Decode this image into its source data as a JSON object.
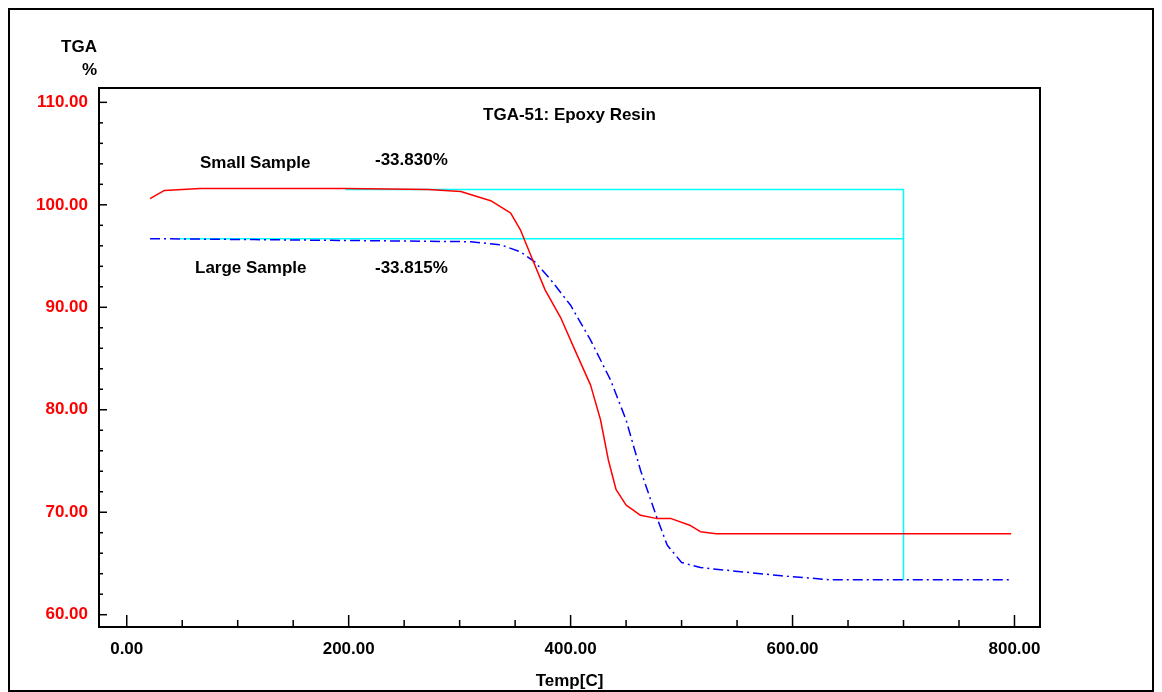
{
  "chart_data": {
    "type": "line",
    "title": "TGA-51: Epoxy Resin",
    "xlabel": "Temp[C]",
    "ylabel": "TGA\n%",
    "xlim": [
      -25,
      823
    ],
    "ylim": [
      58.8,
      111.4
    ],
    "xticks": [
      {
        "value": 0,
        "label": "0.00"
      },
      {
        "value": 50,
        "label": null
      },
      {
        "value": 100,
        "label": null
      },
      {
        "value": 150,
        "label": null
      },
      {
        "value": 200,
        "label": "200.00"
      },
      {
        "value": 250,
        "label": null
      },
      {
        "value": 300,
        "label": null
      },
      {
        "value": 350,
        "label": null
      },
      {
        "value": 400,
        "label": "400.00"
      },
      {
        "value": 450,
        "label": null
      },
      {
        "value": 500,
        "label": null
      },
      {
        "value": 550,
        "label": null
      },
      {
        "value": 600,
        "label": "600.00"
      },
      {
        "value": 650,
        "label": null
      },
      {
        "value": 700,
        "label": null
      },
      {
        "value": 750,
        "label": null
      },
      {
        "value": 800,
        "label": "800.00"
      }
    ],
    "yticks": [
      {
        "value": 60,
        "label": "60.00"
      },
      {
        "value": 62,
        "label": null
      },
      {
        "value": 64,
        "label": null
      },
      {
        "value": 66,
        "label": null
      },
      {
        "value": 68,
        "label": null
      },
      {
        "value": 70,
        "label": "70.00"
      },
      {
        "value": 72,
        "label": null
      },
      {
        "value": 74,
        "label": null
      },
      {
        "value": 76,
        "label": null
      },
      {
        "value": 78,
        "label": null
      },
      {
        "value": 80,
        "label": "80.00"
      },
      {
        "value": 82,
        "label": null
      },
      {
        "value": 84,
        "label": null
      },
      {
        "value": 86,
        "label": null
      },
      {
        "value": 88,
        "label": null
      },
      {
        "value": 90,
        "label": "90.00"
      },
      {
        "value": 92,
        "label": null
      },
      {
        "value": 94,
        "label": null
      },
      {
        "value": 96,
        "label": null
      },
      {
        "value": 98,
        "label": null
      },
      {
        "value": 100,
        "label": "100.00"
      },
      {
        "value": 102,
        "label": null
      },
      {
        "value": 104,
        "label": null
      },
      {
        "value": 106,
        "label": null
      },
      {
        "value": 108,
        "label": null
      },
      {
        "value": 110,
        "label": "110.00"
      }
    ],
    "grid": false,
    "marker": "none",
    "series": [
      {
        "color": "#ff0000",
        "line_style": "solid",
        "x": [
          21,
          34,
          66,
          197,
          272,
          301,
          328,
          346,
          355,
          364,
          377,
          391,
          404,
          418,
          427,
          434,
          441,
          450,
          463,
          477,
          490,
          508,
          517,
          531,
          608,
          797
        ],
        "values": [
          100.6,
          101.4,
          101.6,
          101.6,
          101.5,
          101.3,
          100.4,
          99.2,
          97.5,
          95.1,
          91.7,
          89,
          85.8,
          82.4,
          79,
          75.1,
          72.2,
          70.7,
          69.7,
          69.4,
          69.4,
          68.7,
          68.1,
          67.9,
          67.9,
          67.9
        ]
      },
      {
        "color": "#0000ff",
        "line_style": "dashed",
        "x": [
          21,
          219,
          310,
          337,
          355,
          368,
          382,
          400,
          418,
          436,
          450,
          463,
          477,
          487,
          500,
          517,
          544,
          590,
          635,
          797
        ],
        "values": [
          96.7,
          96.5,
          96.4,
          96.1,
          95.4,
          94.4,
          92.7,
          90.2,
          86.8,
          82.9,
          79,
          74.1,
          69.7,
          66.8,
          65.1,
          64.6,
          64.3,
          63.8,
          63.4,
          63.4
        ]
      },
      {
        "color": "#00ffff",
        "line_style": "solid",
        "x": [
          197,
          700,
          700
        ],
        "values": [
          101.5,
          101.5,
          63.4
        ]
      },
      {
        "color": "#00ffff",
        "line_style": "solid",
        "x": [
          48,
          700
        ],
        "values": [
          96.7,
          96.7
        ]
      }
    ],
    "annotations": [
      "Small Sample",
      "-33.830%",
      "Large Sample",
      "-33.815%"
    ]
  }
}
